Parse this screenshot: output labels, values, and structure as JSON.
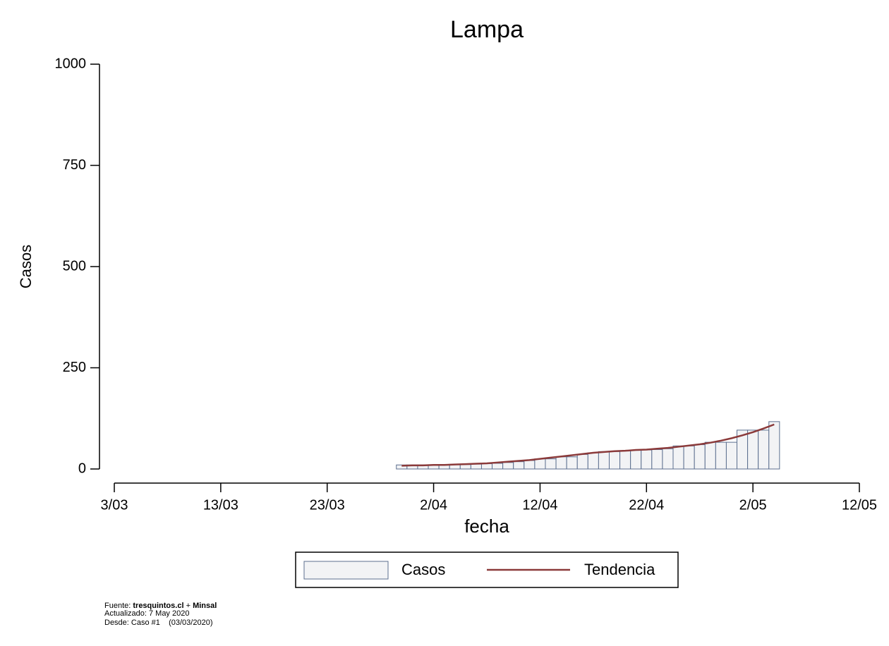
{
  "chart_data": {
    "type": "bar_line",
    "title": "Lampa",
    "x_label": "fecha",
    "y_label": "Casos",
    "x": [
      "30/03",
      "31/03",
      "1/04",
      "2/04",
      "3/04",
      "4/04",
      "5/04",
      "6/04",
      "7/04",
      "8/04",
      "9/04",
      "10/04",
      "11/04",
      "12/04",
      "13/04",
      "14/04",
      "15/04",
      "16/04",
      "17/04",
      "18/04",
      "19/04",
      "20/04",
      "21/04",
      "22/04",
      "23/04",
      "24/04",
      "25/04",
      "26/04",
      "27/04",
      "28/04",
      "29/04",
      "30/04",
      "1/05",
      "2/05",
      "3/05",
      "4/05"
    ],
    "series": [
      {
        "name": "Casos",
        "type": "bar",
        "color": "#f2f3f5",
        "edge": "#5c6f8f",
        "values": [
          10,
          10,
          10,
          10,
          10,
          11,
          11,
          12,
          13,
          14,
          16,
          18,
          21,
          25,
          25,
          30,
          30,
          36,
          40,
          43,
          43,
          45,
          46,
          47,
          48,
          50,
          57,
          57,
          60,
          66,
          66,
          66,
          96,
          96,
          96,
          117
        ]
      },
      {
        "name": "Tendencia",
        "type": "line",
        "color": "#8b3a3a",
        "values": [
          8,
          9,
          9,
          10,
          10,
          11,
          12,
          13,
          14,
          16,
          18,
          20,
          22,
          25,
          28,
          31,
          34,
          37,
          40,
          42,
          44,
          45,
          47,
          48,
          50,
          52,
          55,
          58,
          61,
          65,
          70,
          76,
          83,
          91,
          100,
          110
        ]
      }
    ],
    "xlim": [
      "3/03",
      "12/05"
    ],
    "xticks": [
      "3/03",
      "13/03",
      "23/03",
      "2/04",
      "12/04",
      "22/04",
      "2/05",
      "12/05"
    ],
    "ylim": [
      0,
      1000
    ],
    "yticks": [
      0,
      250,
      500,
      750,
      1000
    ],
    "notes": {
      "source_prefix": "Fuente:",
      "source_site": "tresquintos.cl",
      "source_plus": "+",
      "source_org": "Minsal",
      "updated": "Actualizado: 7 May 2020",
      "since": "Desde: Caso #1    (03/03/2020)"
    }
  }
}
